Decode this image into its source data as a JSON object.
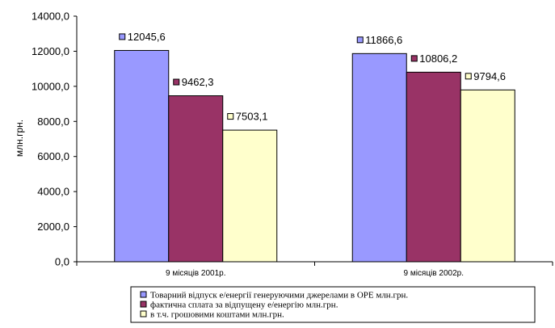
{
  "chart_data": {
    "type": "bar",
    "title": "",
    "xlabel": "",
    "ylabel": "млн.грн.",
    "ylim": [
      0,
      14000
    ],
    "ytick_step": 2000,
    "ytick_labels": [
      "0,0",
      "2000,0",
      "4000,0",
      "6000,0",
      "8000,0",
      "10000,0",
      "12000,0",
      "14000,0"
    ],
    "categories": [
      "9 місяців 2001р.",
      "9 місяців 2002р."
    ],
    "series": [
      {
        "name": "Товарний відпуск е/енергії генеруючими джерелами в ОРЕ млн.грн.",
        "color": "#9999ff",
        "values": [
          12045.6,
          11866.6
        ],
        "labels": [
          "12045,6",
          "11866,6"
        ]
      },
      {
        "name": "фактична сплата за відпущену е/енергію  млн.грн.",
        "color": "#993366",
        "values": [
          9462.3,
          10806.2
        ],
        "labels": [
          "9462,3",
          "10806,2"
        ]
      },
      {
        "name": "в т.ч. грошовими коштами  млн.грн.",
        "color": "#ffffcc",
        "values": [
          7503.1,
          9794.6
        ],
        "labels": [
          "7503,1",
          "9794,6"
        ]
      }
    ],
    "grid": false,
    "legend_position": "bottom"
  }
}
